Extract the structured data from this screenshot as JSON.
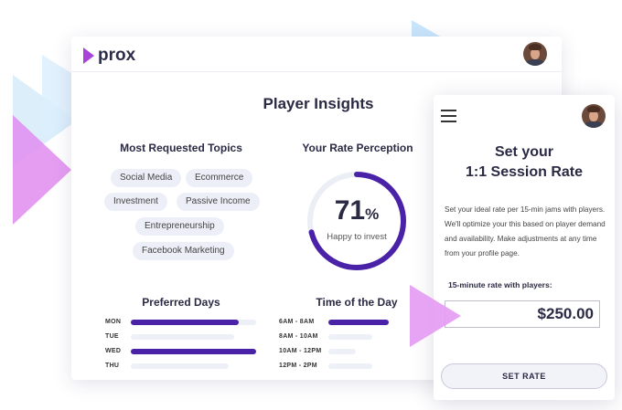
{
  "brand": {
    "name": "prox",
    "accent": "#a844d8"
  },
  "main": {
    "title": "Player Insights",
    "topics": {
      "heading": "Most Requested Topics",
      "chips": [
        "Social Media",
        "Ecommerce",
        "Investment",
        "Passive Income",
        "Entrepreneurship",
        "Facebook Marketing"
      ]
    },
    "rate_perception": {
      "heading": "Your Rate Perception",
      "value": "71",
      "unit": "%",
      "fraction": 0.71,
      "caption": "Happy to invest",
      "color": "#4a22a8"
    },
    "preferred_days": {
      "heading": "Preferred Days",
      "rows": [
        {
          "label": "MON",
          "fraction": 0.86
        },
        {
          "label": "TUE",
          "fraction": 0.0
        },
        {
          "label": "WED",
          "fraction": 1.0
        },
        {
          "label": "THU",
          "fraction": 0.0
        }
      ]
    },
    "time_of_day": {
      "heading": "Time of the Day",
      "rows": [
        {
          "label": "6AM - 8AM",
          "fraction": 1.0
        },
        {
          "label": "8AM - 10AM",
          "fraction": 0.0
        },
        {
          "label": "10AM - 12PM",
          "fraction": 0.0
        },
        {
          "label": "12PM - 2PM",
          "fraction": 0.0
        }
      ]
    }
  },
  "phone": {
    "title_line1": "Set your",
    "title_line2": "1:1 Session Rate",
    "description": "Set your ideal rate per 15-min jams with players. We'll optimize your this based on player demand and availability. Make adjustments at any time from your profile page.",
    "rate_label": "15-minute rate with players:",
    "rate_value": "$250.00",
    "button_label": "SET RATE"
  }
}
